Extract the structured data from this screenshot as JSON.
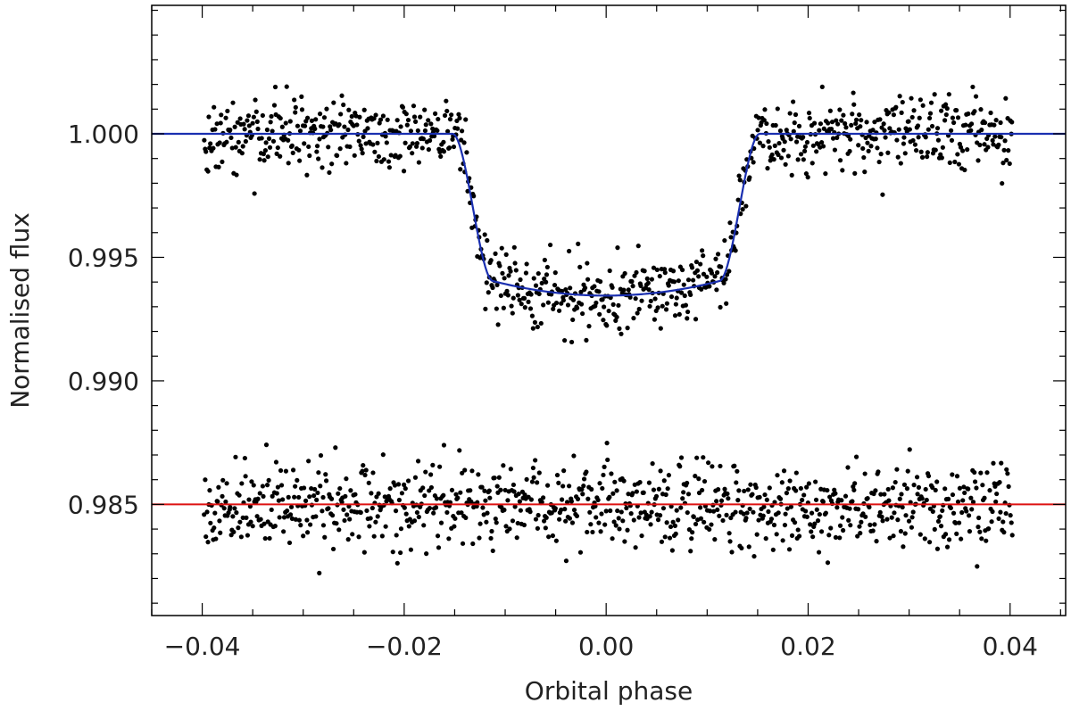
{
  "chart_data": {
    "type": "scatter",
    "title": "",
    "xlabel": "Orbital phase",
    "ylabel": "Normalised flux",
    "xlim": [
      -0.045,
      0.0455
    ],
    "ylim": [
      0.9805,
      1.0052
    ],
    "xticks": [
      {
        "value": -0.04,
        "label": "−0.04"
      },
      {
        "value": -0.02,
        "label": "−0.02"
      },
      {
        "value": 0.0,
        "label": "0.00"
      },
      {
        "value": 0.02,
        "label": "0.02"
      },
      {
        "value": 0.04,
        "label": "0.04"
      }
    ],
    "yticks": [
      {
        "value": 0.985,
        "label": "0.985"
      },
      {
        "value": 0.99,
        "label": "0.990"
      },
      {
        "value": 0.995,
        "label": "0.995"
      },
      {
        "value": 1.0,
        "label": "1.000"
      }
    ],
    "grid": false,
    "legend": "none",
    "colors": {
      "points": "#000000",
      "model": "#1a2fb0",
      "residual_line": "#dd1111"
    },
    "series": [
      {
        "kind": "points",
        "description_key": "light_curve",
        "x_range": [
          -0.0398,
          0.0402
        ],
        "n_points": 900,
        "noise_sigma": 0.00075
      },
      {
        "kind": "line",
        "description_key": "transit_model",
        "out_of_transit_flux": 1.0,
        "min_flux": 0.99345,
        "t1": -0.0152,
        "t2": -0.0112,
        "t3": 0.0112,
        "t4": 0.0152
      },
      {
        "kind": "points",
        "description_key": "residuals",
        "x_range": [
          -0.0398,
          0.0402
        ],
        "n_points": 900,
        "offset": 0.985,
        "noise_sigma": 0.00085
      },
      {
        "kind": "hline",
        "description_key": "residual_reference",
        "y": 0.985
      }
    ]
  }
}
